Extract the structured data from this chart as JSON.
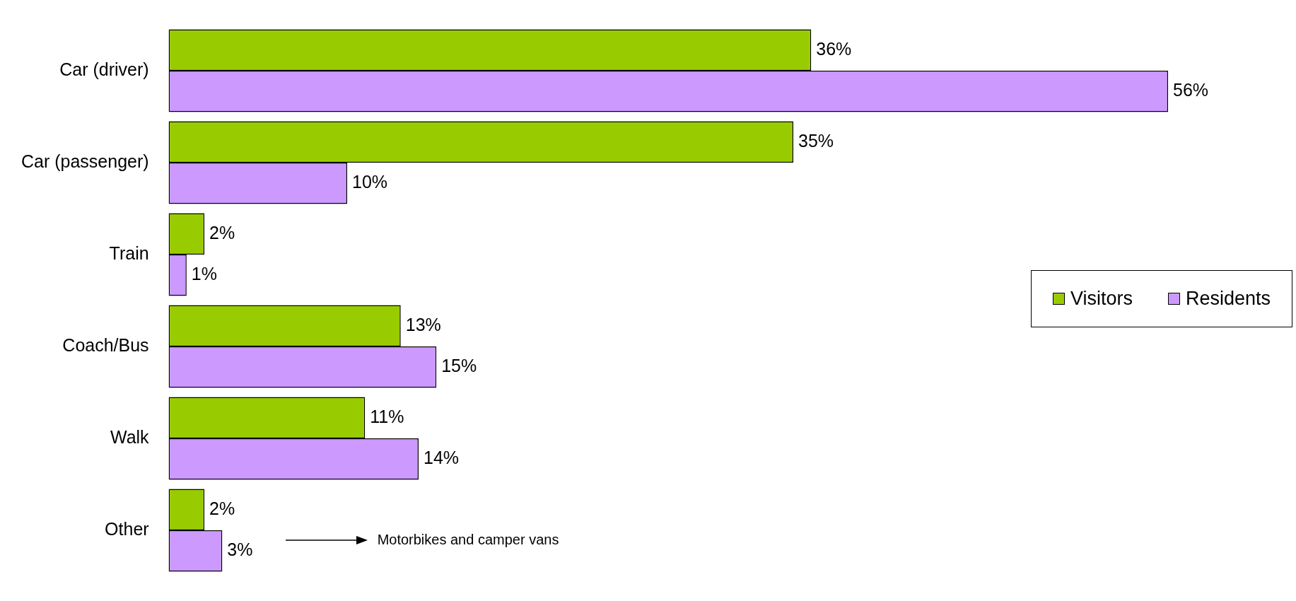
{
  "chart_data": {
    "type": "bar",
    "orientation": "horizontal",
    "categories": [
      "Car (driver)",
      "Car (passenger)",
      "Train",
      "Coach/Bus",
      "Walk",
      "Other"
    ],
    "series": [
      {
        "name": "Visitors",
        "color": "#99cc00",
        "values": [
          36,
          35,
          2,
          13,
          11,
          2
        ],
        "value_labels": [
          "36%",
          "35%",
          "2%",
          "13%",
          "11%",
          "2%"
        ]
      },
      {
        "name": "Residents",
        "color": "#cc99ff",
        "values": [
          56,
          10,
          1,
          15,
          14,
          3
        ],
        "value_labels": [
          "56%",
          "10%",
          "1%",
          "15%",
          "14%",
          "3%"
        ]
      }
    ],
    "tick_labels": "y",
    "legend": "right",
    "annotations": [
      "Motorbikes and camper vans"
    ]
  }
}
